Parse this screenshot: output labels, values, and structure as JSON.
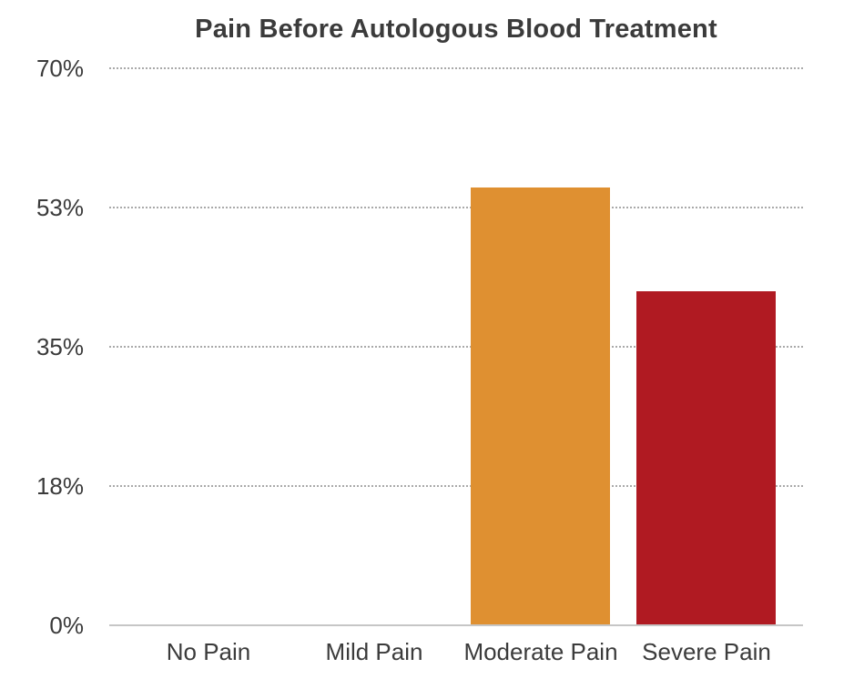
{
  "chart_data": {
    "type": "bar",
    "title": "Pain Before Autologous Blood Treatment",
    "categories": [
      "No Pain",
      "Mild Pain",
      "Moderate Pain",
      "Severe Pain"
    ],
    "values": [
      0,
      0,
      55,
      42
    ],
    "bar_colors": [
      "",
      "",
      "#DF9031",
      "#B01A22"
    ],
    "xlabel": "",
    "ylabel": "",
    "ylim": [
      0,
      70
    ],
    "ytick_labels": [
      "0%",
      "18%",
      "35%",
      "53%",
      "70%"
    ],
    "grid": "horizontal-dotted",
    "legend": "none",
    "palette": {
      "background": "#FFFFFF",
      "text": "#3B3B3B",
      "gridline": "#A9A9A9",
      "axis_line": "#C6C6C6",
      "moderate_pain_bar": "#DF9031",
      "severe_pain_bar": "#B01A22"
    }
  }
}
